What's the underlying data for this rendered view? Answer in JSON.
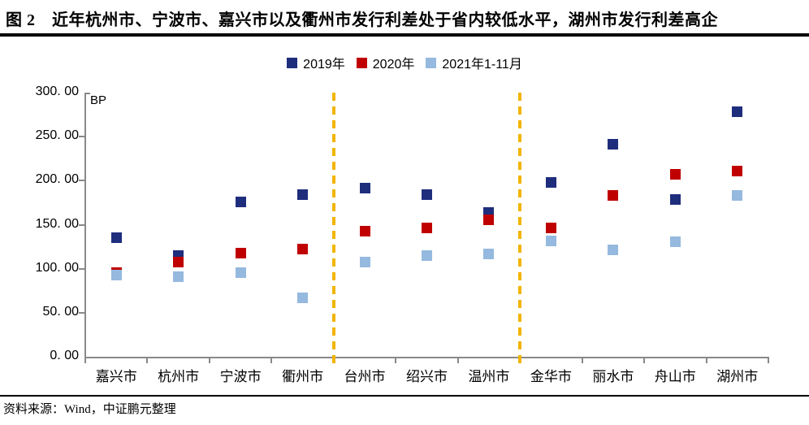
{
  "header": {
    "title": "图 2　近年杭州市、宁波市、嘉兴市以及衢州市发行利差处于省内较低水平，湖州市发行利差高企"
  },
  "footer": {
    "source": "资料来源：Wind，中证鹏元整理"
  },
  "chart_data": {
    "type": "scatter",
    "unit_label": "BP",
    "categories": [
      "嘉兴市",
      "杭州市",
      "宁波市",
      "衢州市",
      "台州市",
      "绍兴市",
      "温州市",
      "金华市",
      "丽水市",
      "舟山市",
      "湖州市"
    ],
    "series": [
      {
        "name": "2019年",
        "color": "#1F2D7D",
        "values": [
          135,
          115,
          176,
          184,
          192,
          184,
          164,
          198,
          241,
          179,
          278
        ]
      },
      {
        "name": "2020年",
        "color": "#C00000",
        "values": [
          96,
          108,
          118,
          122,
          143,
          146,
          156,
          146,
          183,
          207,
          211
        ]
      },
      {
        "name": "2021年1-11月",
        "color": "#95B9DF",
        "values": [
          93,
          91,
          96,
          67,
          108,
          115,
          117,
          132,
          121,
          131,
          183
        ]
      }
    ],
    "ylim": [
      0,
      300
    ],
    "ytick_step": 50,
    "ytick_labels": [
      "300. 00",
      "250. 00",
      "200. 00",
      "150. 00",
      "100. 00",
      "50. 00",
      "0. 00"
    ],
    "grid": "off",
    "legend_position": "top-center",
    "separators_after_index": [
      3,
      6
    ],
    "separator_color": "#F2B500",
    "axis_color": "#898989",
    "marker_shape": "square"
  }
}
